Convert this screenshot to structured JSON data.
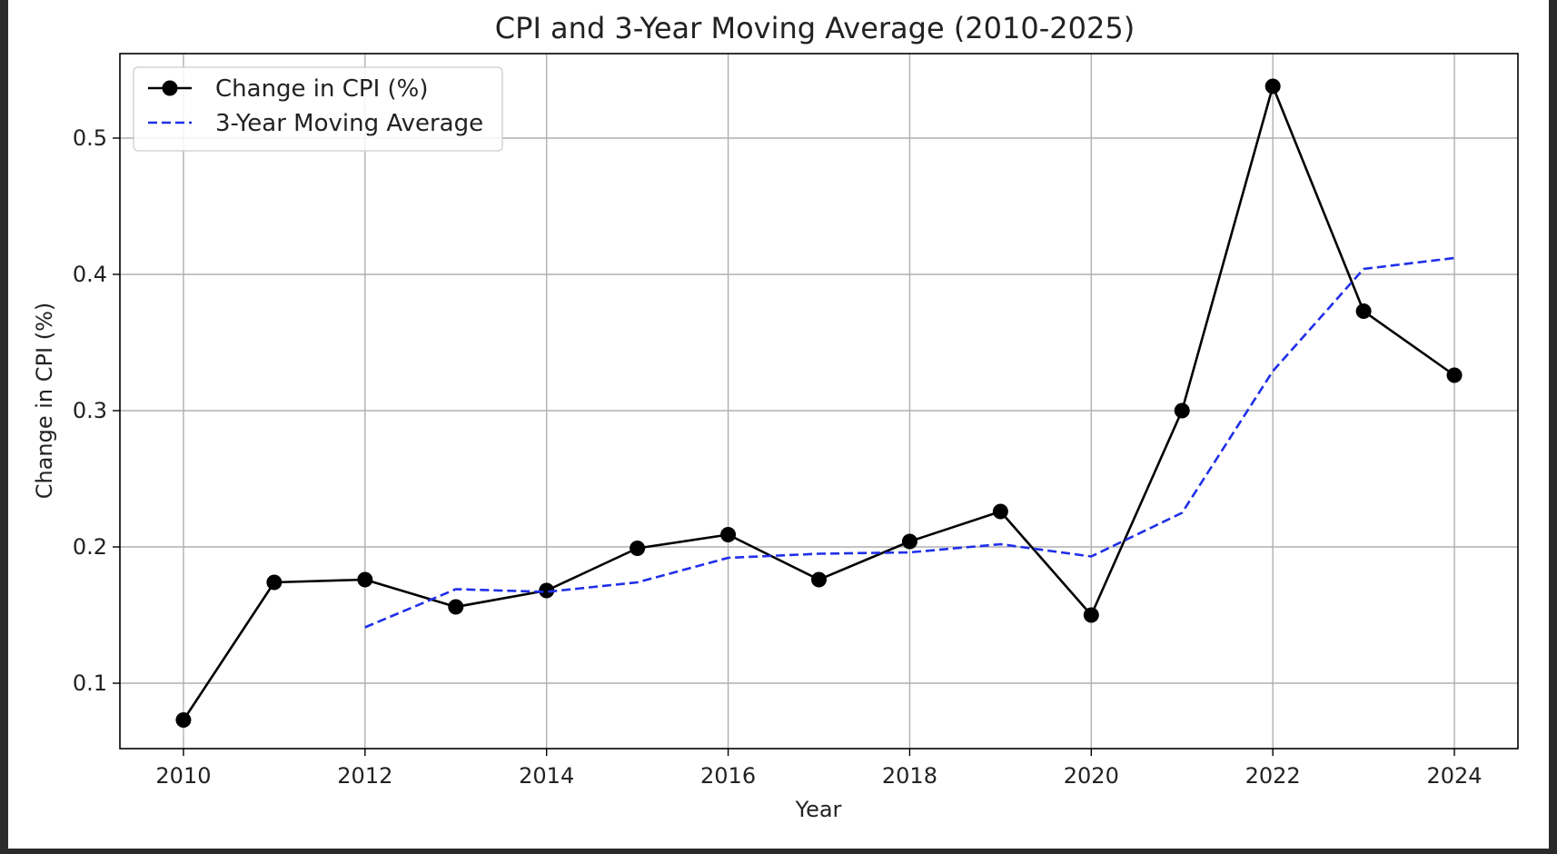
{
  "chart_data": {
    "type": "line",
    "title": "CPI and 3-Year Moving Average (2010-2025)",
    "xlabel": "Year",
    "ylabel": "Change in CPI (%)",
    "x": [
      2010,
      2011,
      2012,
      2013,
      2014,
      2015,
      2016,
      2017,
      2018,
      2019,
      2020,
      2021,
      2022,
      2023,
      2024
    ],
    "xlim": [
      2009.3,
      2024.7
    ],
    "ylim": [
      0.052,
      0.562
    ],
    "xticks": [
      2010,
      2012,
      2014,
      2016,
      2018,
      2020,
      2022,
      2024
    ],
    "yticks": [
      0.1,
      0.2,
      0.3,
      0.4,
      0.5
    ],
    "grid": true,
    "legend_position": "top-left",
    "series": [
      {
        "name": "Change in CPI (%)",
        "color": "#000000",
        "style": "solid",
        "marker": "circle",
        "values": [
          0.073,
          0.174,
          0.176,
          0.156,
          0.168,
          0.199,
          0.209,
          0.176,
          0.204,
          0.226,
          0.15,
          0.3,
          0.538,
          0.373,
          0.326
        ]
      },
      {
        "name": "3-Year Moving Average",
        "color": "#1f2fe8",
        "style": "dashed",
        "marker": "none",
        "values": [
          null,
          null,
          0.141,
          0.169,
          0.167,
          0.174,
          0.192,
          0.195,
          0.196,
          0.202,
          0.193,
          0.225,
          0.329,
          0.404,
          0.412
        ]
      }
    ]
  }
}
